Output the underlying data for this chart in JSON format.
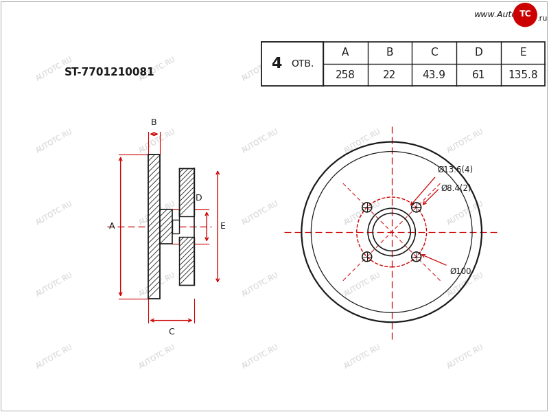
{
  "part_number": "ST-7701210081",
  "holes_count": "4",
  "holes_label": "ОТВ.",
  "table_headers": [
    "A",
    "B",
    "C",
    "D",
    "E"
  ],
  "table_values": [
    "258",
    "22",
    "43.9",
    "61",
    "135.8"
  ],
  "dim_labels": {
    "bolt_circle": "Ø13.6(4)",
    "center_hole": "Ø8.4(2)",
    "pcd": "Ø100"
  },
  "bg_color": "#ffffff",
  "line_color": "#1a1a1a",
  "dim_color": "#cc0000",
  "watermark_color": "#cccccc",
  "logo_text1": "www.Auto",
  "logo_text2": "TC",
  "logo_text3": ".ru",
  "logo_bg": "#cc0000"
}
